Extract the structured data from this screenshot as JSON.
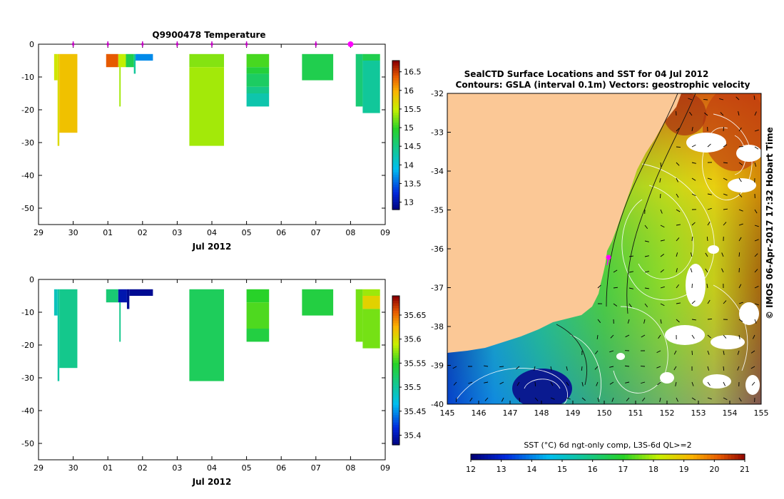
{
  "chart_data": [
    {
      "type": "heatmap",
      "title": "Q9900478  Temperature",
      "xlabel": "Jul 2012",
      "x_ticks": [
        "29",
        "30",
        "01",
        "02",
        "03",
        "04",
        "05",
        "06",
        "07",
        "08",
        "09"
      ],
      "xlim_days": [
        0,
        10
      ],
      "ylim": [
        -55,
        0
      ],
      "y_ticks": [
        0,
        -10,
        -20,
        -30,
        -40,
        -50
      ],
      "colorbar": {
        "ticks": [
          "16.5",
          "16",
          "15.5",
          "15",
          "14.5",
          "14",
          "13.5",
          "13"
        ],
        "range": [
          12.8,
          16.8
        ]
      },
      "marker_days": [
        1,
        2,
        3,
        4,
        5,
        6,
        8,
        9
      ],
      "highlight_day": 9,
      "profiles": [
        {
          "t0": 0.45,
          "t1": 0.55,
          "d0": 3,
          "d1": 11,
          "value": 15.6
        },
        {
          "t0": 0.55,
          "t1": 0.6,
          "d0": 3,
          "d1": 31,
          "value": 15.7
        },
        {
          "t0": 0.6,
          "t1": 1.12,
          "d0": 3,
          "d1": 27,
          "value": 15.9
        },
        {
          "t0": 1.95,
          "t1": 2.3,
          "d0": 3,
          "d1": 7,
          "value": 16.4
        },
        {
          "t0": 2.3,
          "t1": 2.52,
          "d0": 3,
          "d1": 7,
          "value": 15.5
        },
        {
          "t0": 2.33,
          "t1": 2.37,
          "d0": 7,
          "d1": 19,
          "value": 15.4
        },
        {
          "t0": 2.52,
          "t1": 2.75,
          "d0": 3,
          "d1": 7,
          "value": 14.8
        },
        {
          "t0": 2.75,
          "t1": 2.8,
          "d0": 3,
          "d1": 9,
          "value": 14.4
        },
        {
          "t0": 2.8,
          "t1": 3.3,
          "d0": 3,
          "d1": 5,
          "value": 13.7
        },
        {
          "t0": 4.35,
          "t1": 5.35,
          "d0": 3,
          "d1": 7,
          "value": 15.3
        },
        {
          "t0": 4.35,
          "t1": 5.35,
          "d0": 7,
          "d1": 31,
          "value": 15.4
        },
        {
          "t0": 6.0,
          "t1": 6.65,
          "d0": 3,
          "d1": 7,
          "value": 15.1
        },
        {
          "t0": 6.0,
          "t1": 6.65,
          "d0": 7,
          "d1": 9,
          "value": 14.9
        },
        {
          "t0": 6.0,
          "t1": 6.65,
          "d0": 9,
          "d1": 13,
          "value": 14.7
        },
        {
          "t0": 6.0,
          "t1": 6.65,
          "d0": 13,
          "d1": 15,
          "value": 14.5
        },
        {
          "t0": 6.0,
          "t1": 6.65,
          "d0": 15,
          "d1": 19,
          "value": 14.3
        },
        {
          "t0": 7.6,
          "t1": 8.5,
          "d0": 3,
          "d1": 11,
          "value": 14.8
        },
        {
          "t0": 9.15,
          "t1": 9.35,
          "d0": 3,
          "d1": 19,
          "value": 14.6
        },
        {
          "t0": 9.35,
          "t1": 9.85,
          "d0": 3,
          "d1": 5,
          "value": 14.8
        },
        {
          "t0": 9.35,
          "t1": 9.85,
          "d0": 5,
          "d1": 21,
          "value": 14.4
        }
      ]
    },
    {
      "type": "heatmap",
      "title": "",
      "xlabel": "Jul 2012",
      "x_ticks": [
        "29",
        "30",
        "01",
        "02",
        "03",
        "04",
        "05",
        "06",
        "07",
        "08",
        "09"
      ],
      "xlim_days": [
        0,
        10
      ],
      "ylim": [
        -55,
        0
      ],
      "y_ticks": [
        0,
        -10,
        -20,
        -30,
        -40,
        -50
      ],
      "colorbar": {
        "ticks": [
          "35.65",
          "35.6",
          "35.55",
          "35.5",
          "35.45",
          "35.4"
        ],
        "range": [
          35.38,
          35.69
        ]
      },
      "profiles": [
        {
          "t0": 0.45,
          "t1": 0.55,
          "d0": 3,
          "d1": 11,
          "value": 35.49
        },
        {
          "t0": 0.55,
          "t1": 0.6,
          "d0": 3,
          "d1": 31,
          "value": 35.5
        },
        {
          "t0": 0.6,
          "t1": 1.12,
          "d0": 3,
          "d1": 27,
          "value": 35.51
        },
        {
          "t0": 1.95,
          "t1": 2.3,
          "d0": 3,
          "d1": 7,
          "value": 35.52
        },
        {
          "t0": 2.33,
          "t1": 2.37,
          "d0": 7,
          "d1": 19,
          "value": 35.51
        },
        {
          "t0": 2.3,
          "t1": 2.55,
          "d0": 3,
          "d1": 7,
          "value": 35.4
        },
        {
          "t0": 2.55,
          "t1": 2.62,
          "d0": 3,
          "d1": 9,
          "value": 35.39
        },
        {
          "t0": 2.62,
          "t1": 3.3,
          "d0": 3,
          "d1": 5,
          "value": 35.39
        },
        {
          "t0": 4.35,
          "t1": 5.35,
          "d0": 3,
          "d1": 31,
          "value": 35.53
        },
        {
          "t0": 6.0,
          "t1": 6.65,
          "d0": 3,
          "d1": 7,
          "value": 35.55
        },
        {
          "t0": 6.0,
          "t1": 6.65,
          "d0": 7,
          "d1": 15,
          "value": 35.56
        },
        {
          "t0": 6.0,
          "t1": 6.65,
          "d0": 15,
          "d1": 19,
          "value": 35.54
        },
        {
          "t0": 7.6,
          "t1": 8.5,
          "d0": 3,
          "d1": 11,
          "value": 35.54
        },
        {
          "t0": 9.15,
          "t1": 9.35,
          "d0": 3,
          "d1": 19,
          "value": 35.57
        },
        {
          "t0": 9.35,
          "t1": 9.85,
          "d0": 3,
          "d1": 5,
          "value": 35.58
        },
        {
          "t0": 9.35,
          "t1": 9.85,
          "d0": 5,
          "d1": 9,
          "value": 35.61
        },
        {
          "t0": 9.35,
          "t1": 9.85,
          "d0": 9,
          "d1": 21,
          "value": 35.57
        }
      ]
    },
    {
      "type": "heatmap",
      "title": "SealCTD Surface Locations and SST for 04 Jul 2012",
      "subtitle": "Contours: GSLA (interval 0.1m) Vectors: geostrophic velocity",
      "x_ticks": [
        "145",
        "146",
        "147",
        "148",
        "149",
        "150",
        "151",
        "152",
        "153",
        "154",
        "155"
      ],
      "y_ticks": [
        "-32",
        "-33",
        "-34",
        "-35",
        "-36",
        "-37",
        "-38",
        "-39",
        "-40"
      ],
      "xlim": [
        145,
        155
      ],
      "ylim": [
        -40,
        -32
      ],
      "colorbar_label": "SST (°C) 6d ngt-only comp, L3S-6d QL>=2",
      "colorbar_ticks": [
        "12",
        "13",
        "14",
        "15",
        "16",
        "17",
        "18",
        "19",
        "20",
        "21"
      ],
      "colorbar_range": [
        12,
        21
      ],
      "side_label": "© IMOS 06-Apr-2017 17:32 Hobart Time",
      "seal_location": {
        "lon": 150.2,
        "lat": -36.2
      }
    }
  ]
}
